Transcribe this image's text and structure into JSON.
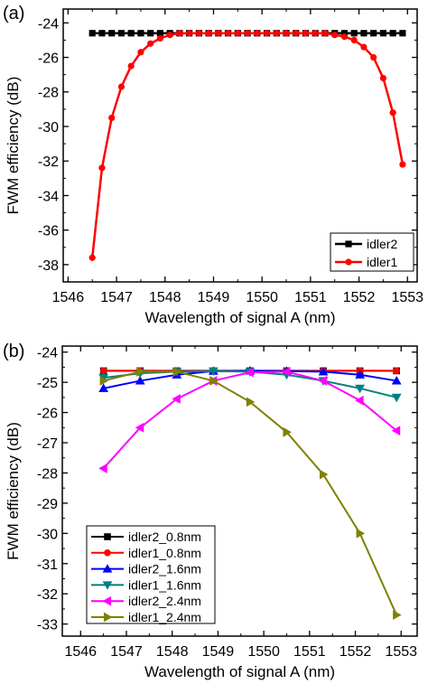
{
  "chart_data": [
    {
      "panel_label": "(a)",
      "type": "line",
      "xlabel": "Wavelength of signal A (nm)",
      "ylabel": "FWM efficiency (dB)",
      "xlim": [
        1545.9,
        1553.2
      ],
      "ylim": [
        -39,
        -23.2
      ],
      "xticks": [
        1546,
        1547,
        1548,
        1549,
        1550,
        1551,
        1552,
        1553
      ],
      "yticks": [
        -38,
        -36,
        -34,
        -32,
        -30,
        -28,
        -26,
        -24
      ],
      "legend_position": "bottom-right",
      "series": [
        {
          "name": "idler2",
          "color": "#000000",
          "marker": "square",
          "x": [
            1546.5,
            1546.7,
            1546.9,
            1547.1,
            1547.3,
            1547.5,
            1547.7,
            1547.9,
            1548.1,
            1548.3,
            1548.5,
            1548.7,
            1548.9,
            1549.1,
            1549.3,
            1549.5,
            1549.7,
            1549.9,
            1550.1,
            1550.3,
            1550.5,
            1550.7,
            1550.9,
            1551.1,
            1551.3,
            1551.5,
            1551.7,
            1551.9,
            1552.1,
            1552.3,
            1552.5,
            1552.7,
            1552.9
          ],
          "y": [
            -24.6,
            -24.6,
            -24.6,
            -24.6,
            -24.6,
            -24.6,
            -24.6,
            -24.6,
            -24.6,
            -24.6,
            -24.6,
            -24.6,
            -24.6,
            -24.6,
            -24.6,
            -24.6,
            -24.6,
            -24.6,
            -24.6,
            -24.6,
            -24.6,
            -24.6,
            -24.6,
            -24.6,
            -24.6,
            -24.6,
            -24.6,
            -24.6,
            -24.6,
            -24.6,
            -24.6,
            -24.6,
            -24.6
          ]
        },
        {
          "name": "idler1",
          "color": "#ff0000",
          "marker": "circle",
          "x": [
            1546.5,
            1546.7,
            1546.9,
            1547.1,
            1547.3,
            1547.5,
            1547.7,
            1547.9,
            1548.1,
            1548.3,
            1548.5,
            1548.7,
            1548.9,
            1549.1,
            1549.3,
            1549.5,
            1549.7,
            1549.9,
            1550.1,
            1550.3,
            1550.5,
            1550.7,
            1550.9,
            1551.1,
            1551.3,
            1551.5,
            1551.7,
            1551.9,
            1552.1,
            1552.3,
            1552.5,
            1552.7,
            1552.9
          ],
          "y": [
            -37.6,
            -32.4,
            -29.5,
            -27.7,
            -26.5,
            -25.7,
            -25.2,
            -24.9,
            -24.7,
            -24.6,
            -24.6,
            -24.6,
            -24.6,
            -24.6,
            -24.6,
            -24.6,
            -24.6,
            -24.6,
            -24.6,
            -24.6,
            -24.6,
            -24.6,
            -24.6,
            -24.6,
            -24.6,
            -24.7,
            -24.8,
            -25.0,
            -25.4,
            -26.0,
            -27.2,
            -29.2,
            -32.2
          ]
        }
      ]
    },
    {
      "panel_label": "(b)",
      "type": "line",
      "xlabel": "Wavelength of signal A (nm)",
      "ylabel": "FWM efficiency (dB)",
      "xlim": [
        1545.6,
        1553.35
      ],
      "ylim": [
        -33.4,
        -23.8
      ],
      "xticks": [
        1546,
        1547,
        1548,
        1549,
        1550,
        1551,
        1552,
        1553
      ],
      "xtick_labels": [
        "1546",
        "1547",
        "1548",
        "1549",
        "1550",
        "1551",
        "1552",
        "1553"
      ],
      "yticks": [
        -33,
        -32,
        -31,
        -30,
        -29,
        -28,
        -27,
        -26,
        -25,
        -24
      ],
      "legend_position": "bottom-left",
      "series": [
        {
          "name": "idler2_0.8nm",
          "color": "#000000",
          "marker": "square",
          "x": [
            1546.5,
            1547.3,
            1548.1,
            1548.9,
            1549.7,
            1550.5,
            1551.3,
            1552.1,
            1552.9
          ],
          "y": [
            -24.62,
            -24.62,
            -24.62,
            -24.62,
            -24.62,
            -24.62,
            -24.62,
            -24.62,
            -24.62
          ]
        },
        {
          "name": "idler1_0.8nm",
          "color": "#ff0000",
          "marker": "circle",
          "x": [
            1546.5,
            1547.3,
            1548.1,
            1548.9,
            1549.7,
            1550.5,
            1551.3,
            1552.1,
            1552.9
          ],
          "y": [
            -24.62,
            -24.62,
            -24.62,
            -24.62,
            -24.62,
            -24.62,
            -24.62,
            -24.62,
            -24.62
          ]
        },
        {
          "name": "idler2_1.6nm",
          "color": "#0000ff",
          "marker": "triangle-up",
          "x": [
            1546.5,
            1547.3,
            1548.1,
            1548.9,
            1549.7,
            1550.5,
            1551.3,
            1552.1,
            1552.9
          ],
          "y": [
            -25.2,
            -24.95,
            -24.75,
            -24.63,
            -24.62,
            -24.63,
            -24.65,
            -24.75,
            -24.95
          ]
        },
        {
          "name": "idler1_1.6nm",
          "color": "#008080",
          "marker": "triangle-down",
          "x": [
            1546.5,
            1547.3,
            1548.1,
            1548.9,
            1549.7,
            1550.5,
            1551.3,
            1552.1,
            1552.9
          ],
          "y": [
            -24.85,
            -24.7,
            -24.65,
            -24.63,
            -24.65,
            -24.75,
            -24.95,
            -25.2,
            -25.5
          ]
        },
        {
          "name": "idler2_2.4nm",
          "color": "#ff00ff",
          "marker": "triangle-left",
          "x": [
            1546.5,
            1547.3,
            1548.1,
            1548.9,
            1549.7,
            1550.5,
            1551.3,
            1552.1,
            1552.9
          ],
          "y": [
            -27.85,
            -26.5,
            -25.55,
            -24.95,
            -24.67,
            -24.65,
            -24.95,
            -25.6,
            -26.6
          ]
        },
        {
          "name": "idler1_2.4nm",
          "color": "#808000",
          "marker": "triangle-right",
          "x": [
            1546.5,
            1547.3,
            1548.1,
            1548.9,
            1549.7,
            1550.5,
            1551.3,
            1552.1,
            1552.9
          ],
          "y": [
            -24.95,
            -24.65,
            -24.65,
            -24.95,
            -25.65,
            -26.65,
            -28.05,
            -30.0,
            -32.7
          ]
        }
      ]
    }
  ]
}
